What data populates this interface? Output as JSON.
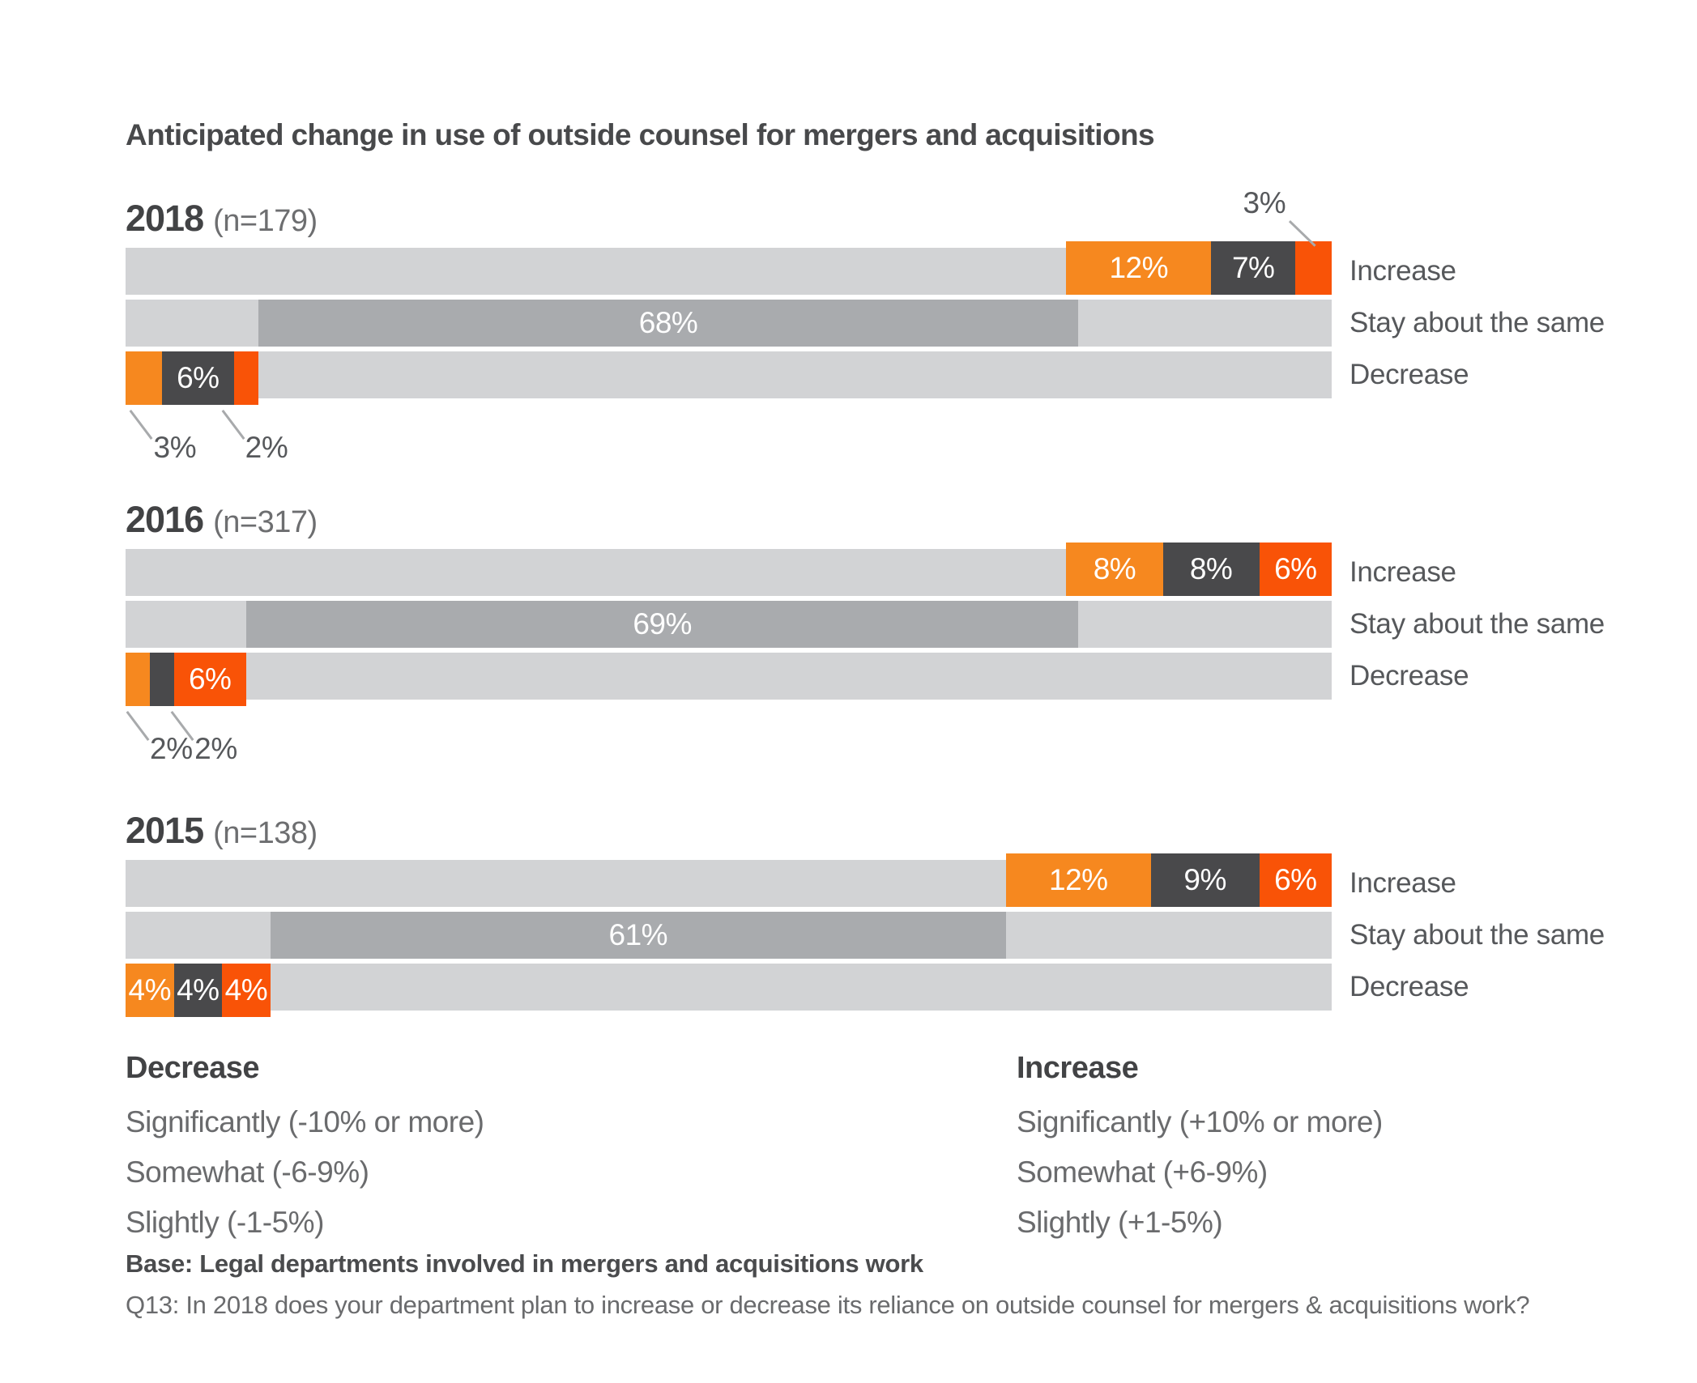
{
  "title": "Anticipated change in use of outside counsel for mergers and acquisitions",
  "colors": {
    "orange": "#F6881F",
    "dark_gray": "#49494B",
    "red_orange": "#F95307",
    "track_gray": "#D2D3D5",
    "stay_gray": "#A9ABAE",
    "callout_line": "#A8AAAC",
    "text_dark": "#424345",
    "text_medium": "#56585B",
    "text_light": "#6A6B6D",
    "bar_label_white": "#FFFFFF"
  },
  "legend": {
    "decrease": {
      "heading": "Decrease",
      "items": [
        "Significantly (-10% or more)",
        "Somewhat (-6-9%)",
        "Slightly (-1-5%)"
      ]
    },
    "increase": {
      "heading": "Increase",
      "items": [
        "Significantly (+10% or more)",
        "Somewhat (+6-9%)",
        "Slightly (+1-5%)"
      ]
    }
  },
  "footer": {
    "base": "Base: Legal departments involved in mergers and acquisitions work",
    "question": "Q13: In 2018 does your department plan to increase or decrease its reliance on outside counsel for mergers & acquisitions work?"
  },
  "chart_data": {
    "type": "bar",
    "orientation": "horizontal-stacked-100pct",
    "row_labels": [
      "Increase",
      "Stay about the same",
      "Decrease"
    ],
    "xlim": [
      0,
      100
    ],
    "grid": false,
    "groups": [
      {
        "year": "2018",
        "n_label": "(n=179)",
        "increase": {
          "segments": [
            {
              "value": 12,
              "label": "12%",
              "color": "orange",
              "label_position": "inside"
            },
            {
              "value": 7,
              "label": "7%",
              "color": "dark_gray",
              "label_position": "inside"
            },
            {
              "value": 3,
              "label": "3%",
              "color": "red_orange",
              "label_position": "callout_top",
              "callout_anchor_pct": 96.6
            }
          ]
        },
        "stay": {
          "value": 68,
          "label": "68%"
        },
        "decrease": {
          "segments": [
            {
              "value": 3,
              "label": "3%",
              "color": "orange",
              "label_position": "callout_bottom",
              "callout_anchor_pct": 0.5
            },
            {
              "value": 6,
              "label": "6%",
              "color": "dark_gray",
              "label_position": "inside"
            },
            {
              "value": 2,
              "label": "2%",
              "color": "red_orange",
              "label_position": "callout_bottom",
              "callout_anchor_pct": 8.1
            }
          ]
        }
      },
      {
        "year": "2016",
        "n_label": "(n=317)",
        "increase": {
          "segments": [
            {
              "value": 8,
              "label": "8%",
              "color": "orange",
              "label_position": "inside"
            },
            {
              "value": 8,
              "label": "8%",
              "color": "dark_gray",
              "label_position": "inside"
            },
            {
              "value": 6,
              "label": "6%",
              "color": "red_orange",
              "label_position": "inside"
            }
          ]
        },
        "stay": {
          "value": 69,
          "label": "69%"
        },
        "decrease": {
          "segments": [
            {
              "value": 2,
              "label": "2%",
              "color": "orange",
              "label_position": "callout_bottom",
              "callout_anchor_pct": 0.2
            },
            {
              "value": 2,
              "label": "2%",
              "color": "dark_gray",
              "label_position": "callout_bottom",
              "callout_anchor_pct": 3.9
            },
            {
              "value": 6,
              "label": "6%",
              "color": "red_orange",
              "label_position": "inside"
            }
          ]
        }
      },
      {
        "year": "2015",
        "n_label": "(n=138)",
        "increase": {
          "segments": [
            {
              "value": 12,
              "label": "12%",
              "color": "orange",
              "label_position": "inside"
            },
            {
              "value": 9,
              "label": "9%",
              "color": "dark_gray",
              "label_position": "inside"
            },
            {
              "value": 6,
              "label": "6%",
              "color": "red_orange",
              "label_position": "inside"
            }
          ]
        },
        "stay": {
          "value": 61,
          "label": "61%"
        },
        "decrease": {
          "segments": [
            {
              "value": 4,
              "label": "4%",
              "color": "orange",
              "label_position": "inside"
            },
            {
              "value": 4,
              "label": "4%",
              "color": "dark_gray",
              "label_position": "inside"
            },
            {
              "value": 4,
              "label": "4%",
              "color": "red_orange",
              "label_position": "inside"
            }
          ]
        }
      }
    ]
  }
}
